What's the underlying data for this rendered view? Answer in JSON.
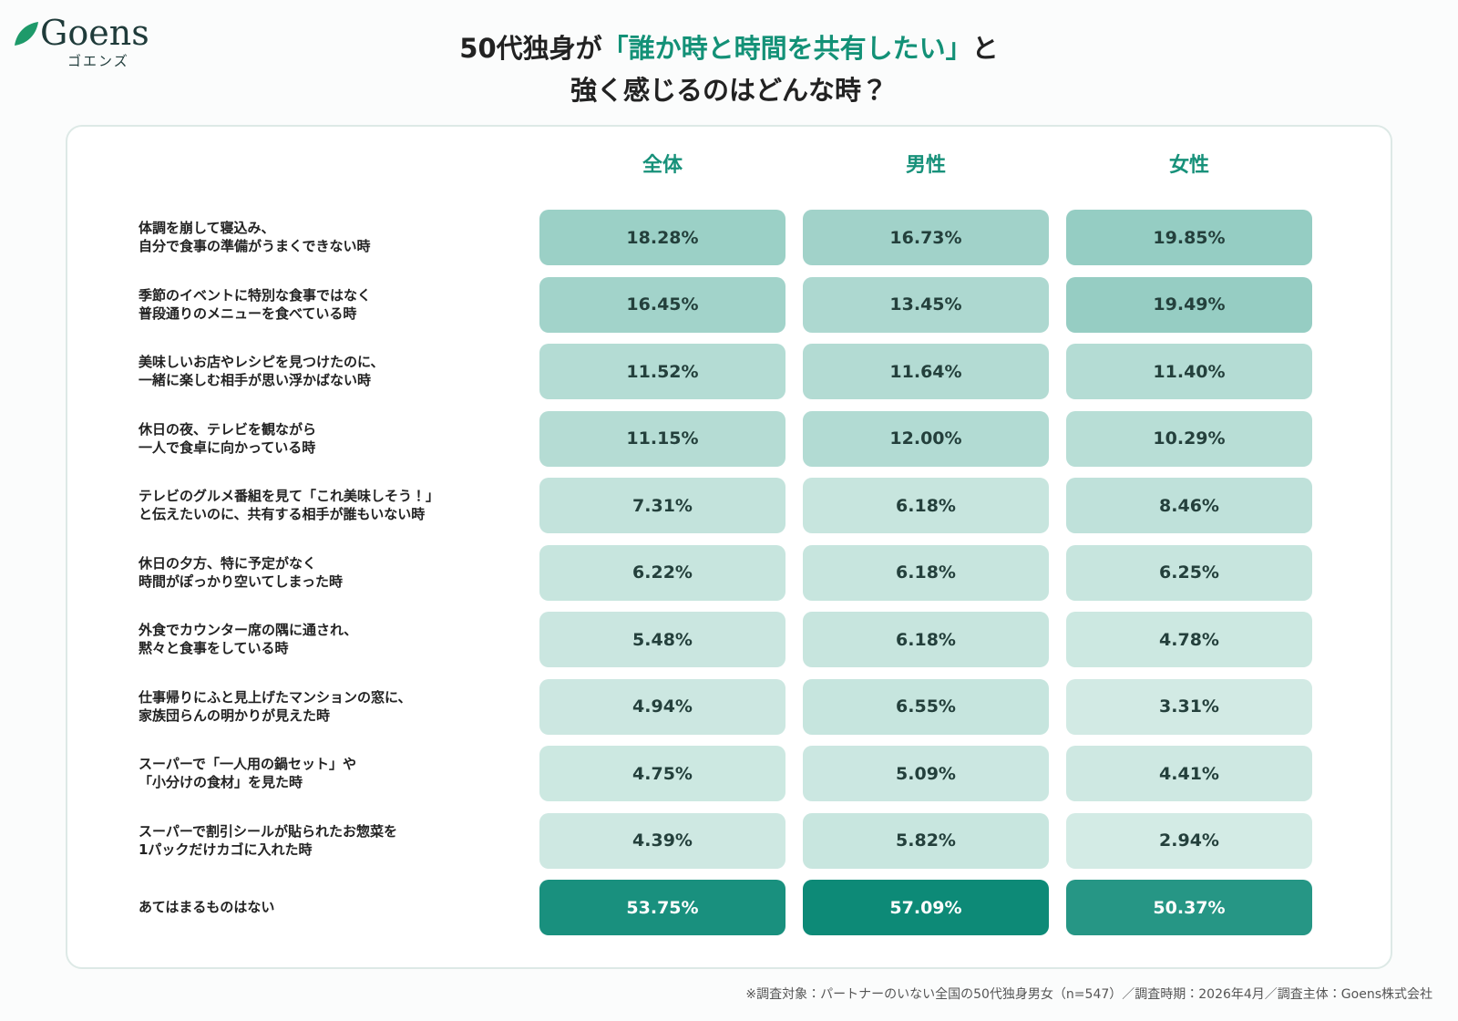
{
  "logo": {
    "name": "Goens",
    "kana": "ゴエンズ"
  },
  "chart_data": {
    "type": "heatmap",
    "title": [
      [
        "50代独身が",
        "「誰か時と時間を共有したい」",
        "と"
      ],
      [
        "強く感じるのはどんな時？"
      ]
    ],
    "categories": [
      "体調を崩して寝込み、\n自分で食事の準備がうまくできない時",
      "季節のイベントに特別な食事ではなく\n普段通りのメニューを食べている時",
      "美味しいお店やレシピを見つけたのに、\n一緒に楽しむ相手が思い浮かばない時",
      "休日の夜、テレビを観ながら\n一人で食卓に向かっている時",
      "テレビのグルメ番組を見て「これ美味しそう！」\nと伝えたいのに、共有する相手が誰もいない時",
      "休日の夕方、特に予定がなく\n時間がぽっかり空いてしまった時",
      "外食でカウンター席の隅に通され、\n黙々と食事をしている時",
      "仕事帰りにふと見上げたマンションの窓に、\n家族団らんの明かりが見えた時",
      "スーパーで「一人用の鍋セット」や\n「小分けの食材」を見た時",
      "スーパーで割引シールが貼られたお惣菜を\n1パックだけカゴに入れた時",
      "あてはまるものはない"
    ],
    "series": [
      {
        "name": "全体",
        "values": [
          18.28,
          16.45,
          11.52,
          11.15,
          7.31,
          6.22,
          5.48,
          4.94,
          4.75,
          4.39,
          53.75
        ],
        "value_labels": [
          "18.28%",
          "16.45%",
          "11.52%",
          "11.15%",
          "7.31%",
          "6.22%",
          "5.48%",
          "4.94%",
          "4.75%",
          "4.39%",
          "53.75%"
        ]
      },
      {
        "name": "男性",
        "values": [
          16.73,
          13.45,
          11.64,
          12.0,
          6.18,
          6.18,
          6.18,
          6.55,
          5.09,
          5.82,
          57.09
        ],
        "value_labels": [
          "16.73%",
          "13.45%",
          "11.64%",
          "12.00%",
          "6.18%",
          "6.18%",
          "6.18%",
          "6.55%",
          "5.09%",
          "5.82%",
          "57.09%"
        ]
      },
      {
        "name": "女性",
        "values": [
          19.85,
          19.49,
          11.4,
          10.29,
          8.46,
          6.25,
          4.78,
          3.31,
          4.41,
          2.94,
          50.37
        ],
        "value_labels": [
          "19.85%",
          "19.49%",
          "11.40%",
          "10.29%",
          "8.46%",
          "6.25%",
          "4.78%",
          "3.31%",
          "4.41%",
          "2.94%",
          "50.37%"
        ]
      }
    ],
    "color_scale": [
      "#d3ebe5",
      "#0d8a77"
    ]
  },
  "footnote": "※調査対象：パートナーのいない全国の50代独身男女（n=547）／調査時期：2026年4月／調査主体：Goens株式会社"
}
